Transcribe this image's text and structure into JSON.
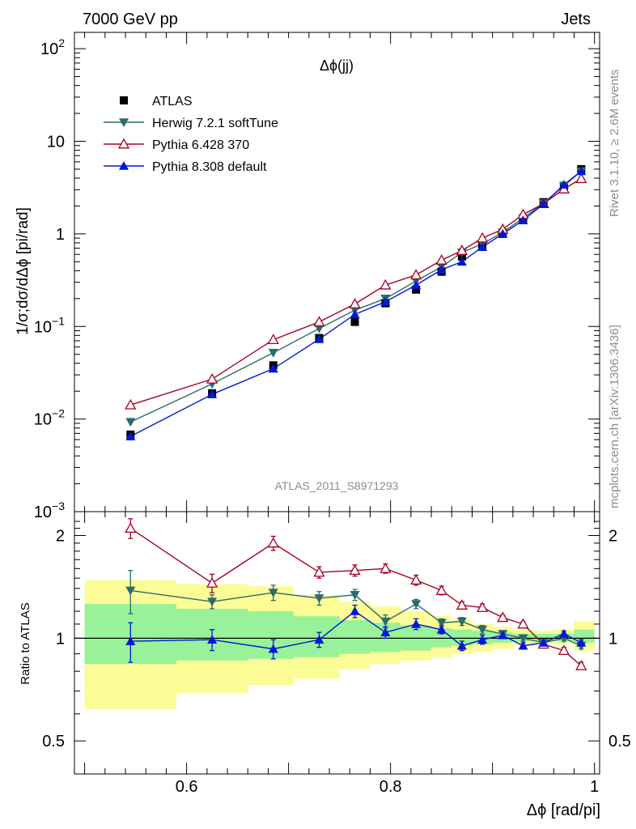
{
  "header": {
    "left": "7000 GeV pp",
    "right": "Jets"
  },
  "side": {
    "rivet": "Rivet 3.1.10, ≥ 2.6M events",
    "mcplots": "mcplots.cern.ch [arXiv:1306.3436]"
  },
  "chart_data": [
    {
      "type": "line",
      "title": "Δϕ(jj)",
      "watermark": "ATLAS_2011_S8971293",
      "ylabel": "1/σ;dσ/dΔϕ [pi/rad]",
      "yscale": "log",
      "xlim": [
        0.49,
        1.005
      ],
      "ylim": [
        0.001,
        150
      ],
      "ytick_labels": [
        {
          "value": 0.001,
          "mant": "10",
          "exp": "−3"
        },
        {
          "value": 0.01,
          "mant": "10",
          "exp": "−2"
        },
        {
          "value": 0.1,
          "mant": "10",
          "exp": "−1"
        },
        {
          "value": 1,
          "mant": "1",
          "exp": ""
        },
        {
          "value": 10,
          "mant": "10",
          "exp": ""
        },
        {
          "value": 100,
          "mant": "10",
          "exp": "2"
        }
      ],
      "legend_position": "top-left",
      "x": [
        0.545,
        0.625,
        0.685,
        0.73,
        0.765,
        0.795,
        0.825,
        0.85,
        0.87,
        0.89,
        0.91,
        0.93,
        0.95,
        0.97,
        0.987
      ],
      "series": [
        {
          "name": "ATLAS",
          "color": "#000000",
          "marker": "square",
          "values": [
            0.0068,
            0.019,
            0.038,
            0.075,
            0.112,
            0.178,
            0.25,
            0.39,
            0.57,
            0.73,
            1.0,
            1.45,
            2.2,
            3.3,
            5.0
          ]
        },
        {
          "name": "Herwig 7.2.1 softTune",
          "color": "#2b6b6b",
          "marker": "triangle-down",
          "values": [
            0.0093,
            0.024,
            0.052,
            0.095,
            0.15,
            0.2,
            0.31,
            0.44,
            0.63,
            0.78,
            1.04,
            1.48,
            2.15,
            3.3,
            4.75
          ]
        },
        {
          "name": "Pythia 6.428 370",
          "color": "#a50021",
          "marker": "triangle-up-open",
          "values": [
            0.0142,
            0.027,
            0.072,
            0.112,
            0.175,
            0.28,
            0.36,
            0.52,
            0.66,
            0.9,
            1.12,
            1.62,
            2.12,
            3.05,
            3.95
          ]
        },
        {
          "name": "Pythia 8.308 default",
          "color": "#0018d6",
          "marker": "triangle-up",
          "values": [
            0.0065,
            0.0185,
            0.035,
            0.073,
            0.135,
            0.185,
            0.28,
            0.41,
            0.5,
            0.72,
            1.0,
            1.4,
            2.1,
            3.4,
            4.75
          ]
        }
      ]
    },
    {
      "type": "line",
      "ylabel": "Ratio to ATLAS",
      "xlabel": "Δϕ [rad/pi]",
      "yscale": "log",
      "xlim": [
        0.49,
        1.005
      ],
      "ylim": [
        0.4,
        2.35
      ],
      "xticks": [
        0.6,
        0.8,
        1
      ],
      "xtick_labels": [
        "0.6",
        "0.8",
        "1"
      ],
      "yticks": [
        0.5,
        1,
        2
      ],
      "ytick_labels": [
        "0.5",
        "1",
        "2"
      ],
      "bands": {
        "x_edges": [
          0.5,
          0.59,
          0.66,
          0.705,
          0.75,
          0.78,
          0.81,
          0.84,
          0.86,
          0.88,
          0.9,
          0.92,
          0.94,
          0.96,
          0.98,
          1.0
        ],
        "inner_low": [
          0.84,
          0.86,
          0.87,
          0.88,
          0.9,
          0.91,
          0.92,
          0.94,
          0.95,
          0.96,
          0.97,
          0.98,
          0.98,
          0.98,
          0.97
        ],
        "inner_high": [
          1.26,
          1.22,
          1.2,
          1.16,
          1.13,
          1.11,
          1.09,
          1.07,
          1.06,
          1.05,
          1.04,
          1.03,
          1.03,
          1.03,
          1.06
        ],
        "outer_low": [
          0.62,
          0.69,
          0.73,
          0.76,
          0.81,
          0.84,
          0.86,
          0.88,
          0.9,
          0.91,
          0.93,
          0.95,
          0.96,
          0.96,
          0.92
        ],
        "outer_high": [
          1.48,
          1.44,
          1.42,
          1.34,
          1.28,
          1.24,
          1.2,
          1.16,
          1.13,
          1.1,
          1.08,
          1.06,
          1.05,
          1.06,
          1.12
        ],
        "inner_color": "#99f299",
        "outer_color": "#fcfc96"
      },
      "x": [
        0.545,
        0.625,
        0.685,
        0.73,
        0.765,
        0.795,
        0.825,
        0.85,
        0.87,
        0.89,
        0.91,
        0.93,
        0.95,
        0.97,
        0.987
      ],
      "series": [
        {
          "name": "Herwig 7.2.1 softTune",
          "color": "#2b6b6b",
          "marker": "triangle-down",
          "values": [
            1.38,
            1.28,
            1.36,
            1.31,
            1.34,
            1.12,
            1.26,
            1.11,
            1.12,
            1.06,
            1.03,
            1.0,
            0.97,
            1.0,
            0.95
          ],
          "err": [
            0.2,
            0.06,
            0.07,
            0.06,
            0.05,
            0.05,
            0.04,
            0.03,
            0.03,
            0.03,
            0.02,
            0.02,
            0.02,
            0.02,
            0.02
          ]
        },
        {
          "name": "Pythia 6.428 370",
          "color": "#a50021",
          "marker": "triangle-up-open",
          "values": [
            2.1,
            1.45,
            1.9,
            1.56,
            1.58,
            1.6,
            1.48,
            1.38,
            1.25,
            1.23,
            1.15,
            1.1,
            0.96,
            0.92,
            0.83
          ],
          "err": [
            0.14,
            0.09,
            0.09,
            0.06,
            0.06,
            0.05,
            0.05,
            0.04,
            0.03,
            0.03,
            0.02,
            0.02,
            0.02,
            0.02,
            0.02
          ]
        },
        {
          "name": "Pythia 8.308 default",
          "color": "#0018d6",
          "marker": "triangle-up",
          "values": [
            0.98,
            0.99,
            0.93,
            0.99,
            1.2,
            1.04,
            1.1,
            1.06,
            0.95,
            0.99,
            1.02,
            0.95,
            0.97,
            1.03,
            0.97
          ],
          "err": [
            0.13,
            0.07,
            0.06,
            0.05,
            0.05,
            0.04,
            0.04,
            0.03,
            0.03,
            0.03,
            0.02,
            0.02,
            0.02,
            0.02,
            0.02
          ]
        }
      ]
    }
  ]
}
